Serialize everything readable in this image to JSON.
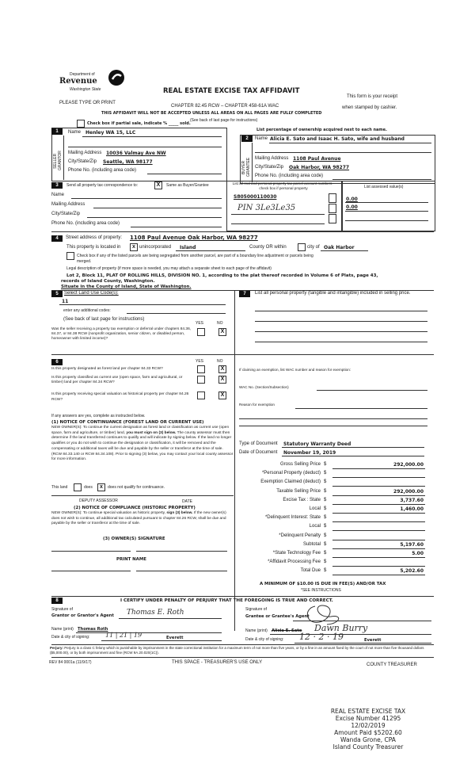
{
  "header": {
    "logo_dept": "Department of",
    "logo_revenue": "Revenue",
    "logo_state": "Washington State",
    "title": "REAL ESTATE EXCISE TAX AFFIDAVIT",
    "please_print": "PLEASE TYPE OR PRINT",
    "chapter": "CHAPTER 82.45 RCW – CHAPTER 458-61A WAC",
    "receipt_1": "This form is your receipt",
    "receipt_2": "when stamped by cashier.",
    "warning": "THIS AFFIDAVIT WILL NOT BE ACCEPTED UNLESS ALL AREAS ON ALL PAGES ARE FULLY COMPLETED",
    "see_back": "(See back of last page for instructions)",
    "partial_sale": "Check box if partial sale, indicate % _____ sold.",
    "list_percentage": "List percentage of ownership acquired next to each name."
  },
  "seller": {
    "num": "1",
    "side_label": "SELLER GRANTOR",
    "name_label": "Name",
    "name": "Henley WA 15, LLC",
    "address_label": "Mailing Address",
    "address": "10036 Valmay Ave NW",
    "city_label": "City/State/Zip",
    "city": "Seattle, WA 98177",
    "phone_label": "Phone No. (including area code)"
  },
  "buyer": {
    "num": "2",
    "side_label": "BUYER GRANTEE",
    "name_label": "Name",
    "name": "Alicia E. Sato and Isaac H. Sato, wife and husband",
    "address_label": "Mailing Address",
    "address": "1108 Paul Avenue",
    "city_label": "City/State/Zip",
    "city": "Oak Harbor, WA 98277",
    "phone_label": "Phone No. (including area code)"
  },
  "section3": {
    "num": "3",
    "send_label": "Send all property tax correspondence to:",
    "same_checked": "X",
    "same_label": "Same as Buyer/Grantee",
    "name_label": "Name",
    "address_label": "Mailing Address",
    "city_label": "City/State/Zip",
    "phone_label": "Phone No. (including area code)",
    "parcel_header": "List all real and personal property tax parcel account numbers - check box if personal property",
    "assessed_header": "List assessed value(s)",
    "parcels": [
      "S805000110030",
      "PIN 3Le3Le35"
    ],
    "assessed": [
      "0.00",
      "0.00"
    ]
  },
  "section4": {
    "num": "4",
    "street_label": "Street address of property:",
    "street": "1108 Paul Avenue Oak Harbor, WA 98277",
    "located_in": "This property is located in",
    "unincorporated_checked": "x",
    "unincorporated_label": "unincorporated",
    "county": "Island",
    "county_or_within": "County OR within",
    "city_of": "city of",
    "city": "Oak Harbor",
    "segregated_text": "Check box if any of the listed parcels are being segregated from another parcel, are part of a boundary line adjustment or parcels being",
    "merged": "merged.",
    "legal_label": "Legal description of property (if more space is needed, you may attach a separate sheet to each page of the affidavit)",
    "legal_1": "Lot 2, Block 11, PLAT OF ROLLING HILLS, DIVISION NO. 1, according to the plat thereof recorded in Volume 6 of Plats, page 43,",
    "legal_2": "records of Island County, Washington.",
    "legal_3": "Situate in the County of Island, State of Washington."
  },
  "section5": {
    "num": "5",
    "label": "Select Land Use Code(s):",
    "code": "11",
    "additional": "enter any additional codes:",
    "see_back": "(See back of last page for instructions)",
    "yes": "YES",
    "no": "NO",
    "question": "Was the seller receiving a property tax exemption or deferral under chapters 84.36, 84.37, or 84.38 RCW (nonprofit organization, senior citizen, or disabled person, homeowner with limited income)?",
    "answer_no": "X"
  },
  "section6": {
    "num": "6",
    "yes": "YES",
    "no": "NO",
    "questions": [
      {
        "text": "Is this property designated as forest land per chapter 84.33 RCW?",
        "no": "X"
      },
      {
        "text": "Is this property classified as current use (open space, farm and agricultural, or timber) land per chapter 84.34 RCW?",
        "no": "X"
      },
      {
        "text": "Is this property receiving special valuation as historical property per chapter 84.26 RCW?",
        "no": "X"
      }
    ],
    "if_yes": "If any answers are yes, complete as instructed below.",
    "notice1_title": "(1) NOTICE OF CONTINUANCE (FOREST LAND OR CURRENT USE)",
    "notice1_text_a": "NEW OWNER(S): To continue the current designation as forest land or classification as current use (open space, farm and agriculture, or timber) land,",
    "notice1_bold": "you must sign on (3) below.",
    "notice1_text_b": "The county assessor must then determine if the land transferred continues to qualify and will indicate by signing below. If the land no longer qualifies or you do not wish to continue the designation or classification, it will be removed and the compensating or additional taxes will be due and payable by the seller or transferor at the time of sale. (RCW 84.33.140 or RCW 84.34.108). Prior to signing (3) below, you may contact your local county assessor for more information.",
    "this_land": "This land",
    "does": "does",
    "does_not_checked": "x",
    "does_not": "does not   qualify for continuance.",
    "deputy": "DEPUTY ASSESSOR",
    "date": "DATE",
    "notice2_title": "(2) NOTICE OF COMPLIANCE (HISTORIC PROPERTY)",
    "notice2_text_a": "NEW OWNER(S): To continue special valuation as historic property,",
    "notice2_bold": "sign (3) below.",
    "notice2_text_b": "If the new owner(s) does not wish to continue, all additional tax calculated pursuant to chapter 84.26 RCW, shall be due and payable by the seller or transferor at the time of sale.",
    "owner_sig": "(3) OWNER(S) SIGNATURE",
    "print_name": "PRINT NAME"
  },
  "section7": {
    "num": "7",
    "label": "List all personal property (tangible and intangible) included in selling price.",
    "exemption_label": "If claiming an exemption, list WAC number and reason for exemption:",
    "wac_label": "WAC No. (Section/Subsection)",
    "reason_label": "Reason for exemption",
    "doc_type_label": "Type of Document",
    "doc_type": "Statutory Warranty Deed",
    "doc_date_label": "Date of Document",
    "doc_date": "November 19, 2019",
    "amounts": [
      {
        "label": "Gross Selling Price",
        "value": "292,000.00"
      },
      {
        "label": "*Personal Property (deduct)",
        "value": ""
      },
      {
        "label": "Exemption Claimed (deduct)",
        "value": ""
      },
      {
        "label": "Taxable Selling Price",
        "value": "292,000.00"
      },
      {
        "label": "Excise Tax : State",
        "value": "3,737.60"
      },
      {
        "label": "Local",
        "value": "1,460.00"
      },
      {
        "label": "*Delinquent Interest: State",
        "value": ""
      },
      {
        "label": "Local",
        "value": ""
      },
      {
        "label": "*Delinquent Penalty",
        "value": ""
      },
      {
        "label": "Subtotal",
        "value": "5,197.60"
      },
      {
        "label": "*State Technology Fee",
        "value": "5.00"
      },
      {
        "label": "*Affidavit Processing Fee",
        "value": ""
      },
      {
        "label": "Total Due",
        "value": "5,202.60"
      }
    ],
    "currency": "$",
    "minimum": "A MINIMUM OF $10.00 IS DUE IN FEE(S) AND/OR TAX",
    "see_instructions": "*SEE INSTRUCTIONS"
  },
  "section8": {
    "num": "8",
    "certify": "I CERTIFY UNDER PENALTY OF PERJURY THAT THE FOREGOING IS TRUE AND CORRECT.",
    "sig_of": "Signature of",
    "grantor_agent": "Grantor or Grantor's Agent",
    "grantor_signature": "Thomas E. Roth",
    "grantee_agent": "Grantee or Grantee's Agent",
    "name_print": "Name (print)",
    "grantor_name": "Thomas Roth",
    "grantee_name": "Alicia E. Sato",
    "grantee_name_handwritten": "Dawn Burry",
    "date_city": "Date & city of signing:",
    "grantor_date": "11 | 21 | 19",
    "grantor_city": "Everett",
    "grantee_date": "12 · 2 · 19",
    "grantee_city": "Everett"
  },
  "footer": {
    "perjury_bold": "Perjury:",
    "perjury_text": "Perjury is a class C felony which is punishable by imprisonment in the state correctional institution for a maximum term of not more than five years, or by a fine in an amount fixed by the court of not more than five thousand dollars ($5,000.00), or by both imprisonment and fine (RCW 9A.20.020(1C)).",
    "rev": "REV 84 0001a (11/9/17)",
    "treasurer_use": "THIS SPACE - TREASURER'S USE ONLY",
    "county_treasurer": "COUNTY TREASURER"
  },
  "stamp": {
    "line1": "REAL ESTATE EXCISE TAX",
    "line2": "Excise Number 41295",
    "line3": "12/02/2019",
    "line4": "Amount Paid $5202.60",
    "line5": "Wanda Grone, CPA",
    "line6": "Island County Treasurer"
  }
}
